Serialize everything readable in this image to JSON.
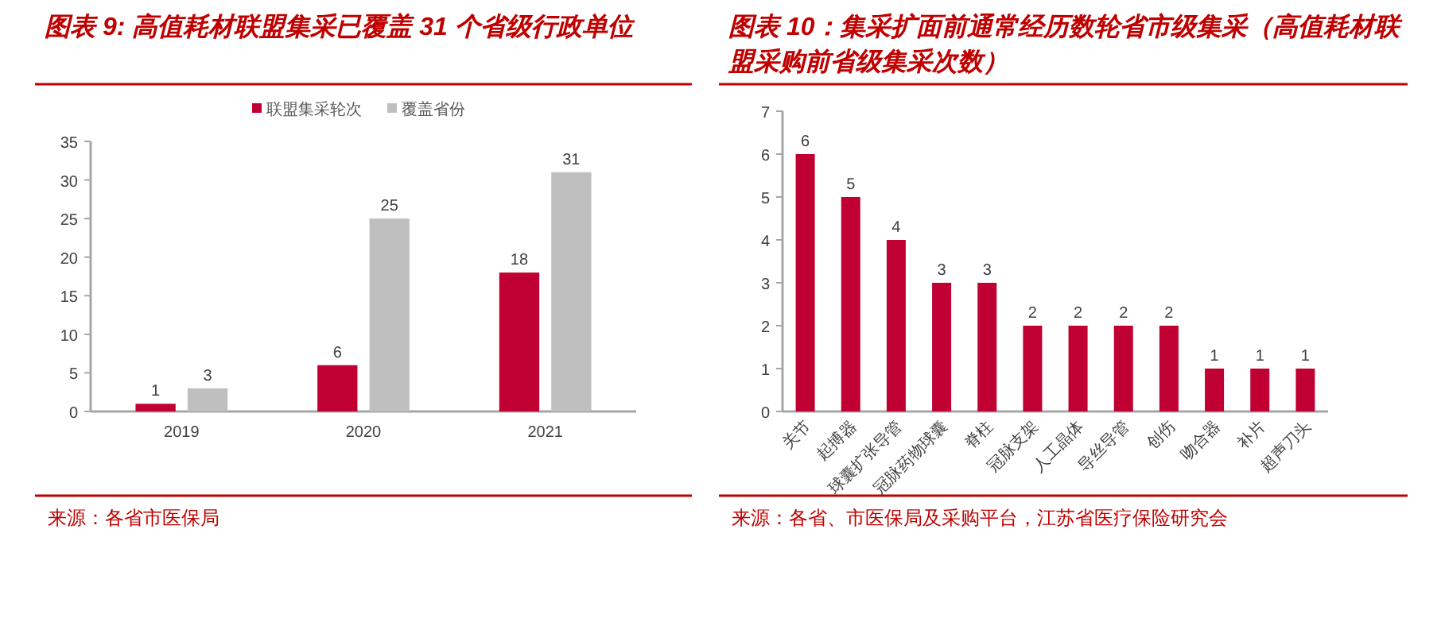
{
  "chart_data": [
    {
      "type": "bar",
      "title": "图表 9: 高值耗材联盟集采已覆盖 31 个省级行政单位",
      "categories": [
        "2019",
        "2020",
        "2021"
      ],
      "series": [
        {
          "name": "联盟集采轮次",
          "color": "#c00032",
          "values": [
            1,
            6,
            18
          ]
        },
        {
          "name": "覆盖省份",
          "color": "#bfbfbf",
          "values": [
            3,
            25,
            31
          ]
        }
      ],
      "ylim": [
        0,
        35
      ],
      "yticks": [
        0,
        5,
        10,
        15,
        20,
        25,
        30,
        35
      ],
      "data_labels": true,
      "legend": "top",
      "grid": false,
      "annotations": [
        "来源：各省市医保局"
      ]
    },
    {
      "type": "bar",
      "title": "图表 10：集采扩面前通常经历数轮省市级集采（高值耗材联盟采购前省级集采次数）",
      "categories": [
        "关节",
        "起搏器",
        "球囊扩张导管",
        "冠脉药物球囊",
        "脊柱",
        "冠脉支架",
        "人工晶体",
        "导丝导管",
        "创伤",
        "吻合器",
        "补片",
        "超声刀头"
      ],
      "values": [
        6,
        5,
        4,
        3,
        3,
        2,
        2,
        2,
        2,
        1,
        1,
        1
      ],
      "color": "#c00032",
      "ylim": [
        0,
        7
      ],
      "yticks": [
        0,
        1,
        2,
        3,
        4,
        5,
        6,
        7
      ],
      "data_labels": true,
      "grid": false,
      "annotations": [
        "来源：各省、市医保局及采购平台，江苏省医疗保险研究会"
      ]
    }
  ]
}
